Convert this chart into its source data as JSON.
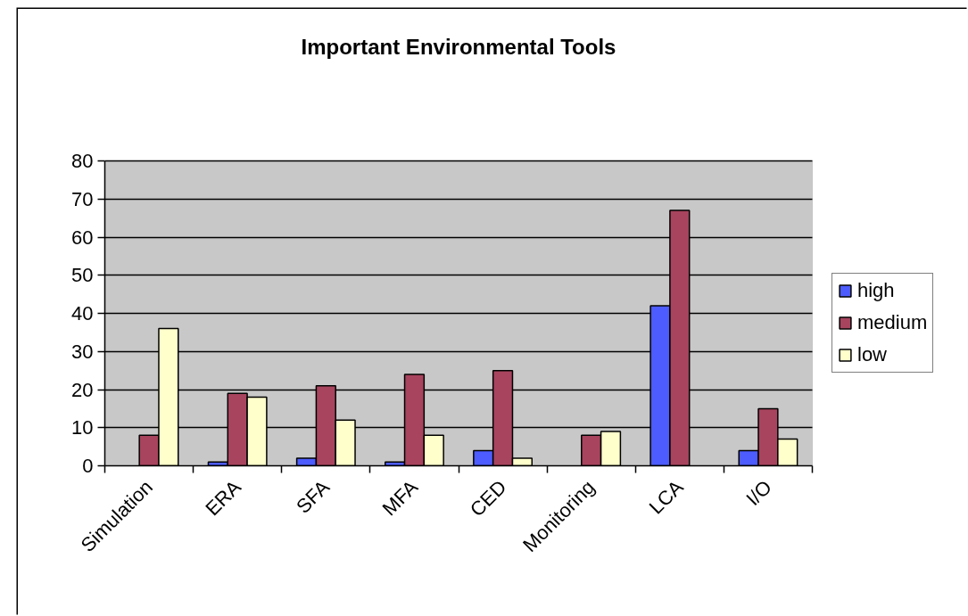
{
  "chart_data": {
    "type": "bar",
    "title": "Important Environmental Tools",
    "categories": [
      "Simulation",
      "ERA",
      "SFA",
      "MFA",
      "CED",
      "Monitoring",
      "LCA",
      "I/O"
    ],
    "series": [
      {
        "name": "high",
        "color": "#4d5cff",
        "values": [
          null,
          1,
          2,
          1,
          4,
          null,
          42,
          4
        ]
      },
      {
        "name": "medium",
        "color": "#a8445e",
        "values": [
          8,
          19,
          21,
          24,
          25,
          8,
          67,
          15
        ]
      },
      {
        "name": "low",
        "color": "#ffffcc",
        "values": [
          36,
          18,
          12,
          8,
          2,
          9,
          null,
          7
        ]
      }
    ],
    "ylim": [
      0,
      80
    ],
    "yticks": [
      0,
      10,
      20,
      30,
      40,
      50,
      60,
      70,
      80
    ],
    "grid": "y",
    "legend": "right"
  }
}
